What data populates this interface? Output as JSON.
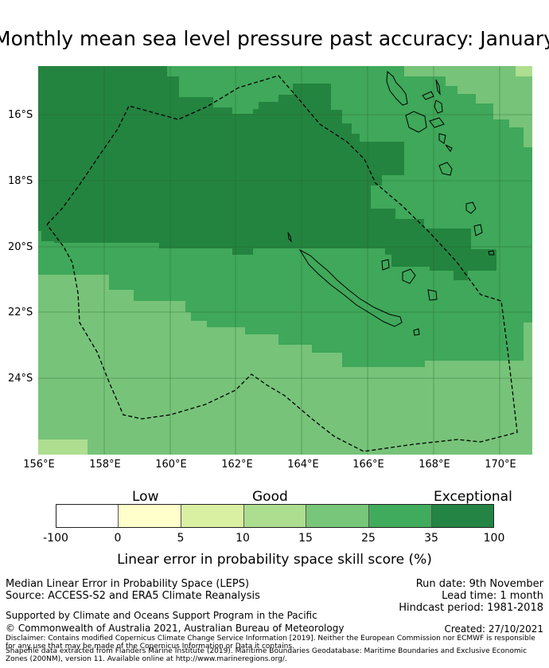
{
  "title": "Monthly mean sea level pressure past accuracy: January",
  "map": {
    "lat_labels": [
      "16°S",
      "18°S",
      "20°S",
      "22°S",
      "24°S"
    ],
    "lon_labels": [
      "156°E",
      "158°E",
      "160°E",
      "162°E",
      "164°E",
      "166°E",
      "168°E",
      "170°E"
    ],
    "extent": {
      "lon": [
        156,
        171
      ],
      "lat": [
        -14.5,
        -26.3
      ]
    },
    "colors": {
      "exceptional": "#23843f",
      "high": "#3fa85a",
      "mid": "#76c379",
      "low": "#aede8f",
      "border": "#000000"
    }
  },
  "legend": {
    "qualitative": [
      "Low",
      "Good",
      "Exceptional"
    ],
    "ticks": [
      "-100",
      "0",
      "5",
      "10",
      "15",
      "25",
      "35",
      "100"
    ],
    "colors": [
      "#ffffff",
      "#ffffcc",
      "#d9f0a3",
      "#addd8e",
      "#78c679",
      "#41ab5d",
      "#238443"
    ],
    "label": "Linear error in probability space skill score (%)"
  },
  "info": {
    "metric": "Median Linear Error in Probability Space (LEPS)",
    "source": "Source: ACCESS-S2 and ERA5 Climate Reanalysis",
    "run_date": "Run date: 9th November",
    "lead_time": "Lead time: 1 month",
    "hindcast": "Hindcast period: 1981-2018",
    "support": "Supported by Climate and Oceans Support Program in the Pacific",
    "copyright": "© Commonwealth of Australia 2021, Australian Bureau of Meteorology",
    "created": "Created: 27/10/2021",
    "disclaimer": "Disclaimer: Contains modified Copernicus Climate Change Service Information [2019]. Neither the European Commission nor ECMWF is responsible for any use that may be made of the Copernicus Information or Data it contains.",
    "shapefile": "Shapefile data extracted from Flanders Marine Institute (2019). Maritime Boundaries Geodatabase: Maritime Boundaries and Exclusive Economic Zones (200NM), version 11. Available online at http://www.marineregions.org/."
  }
}
